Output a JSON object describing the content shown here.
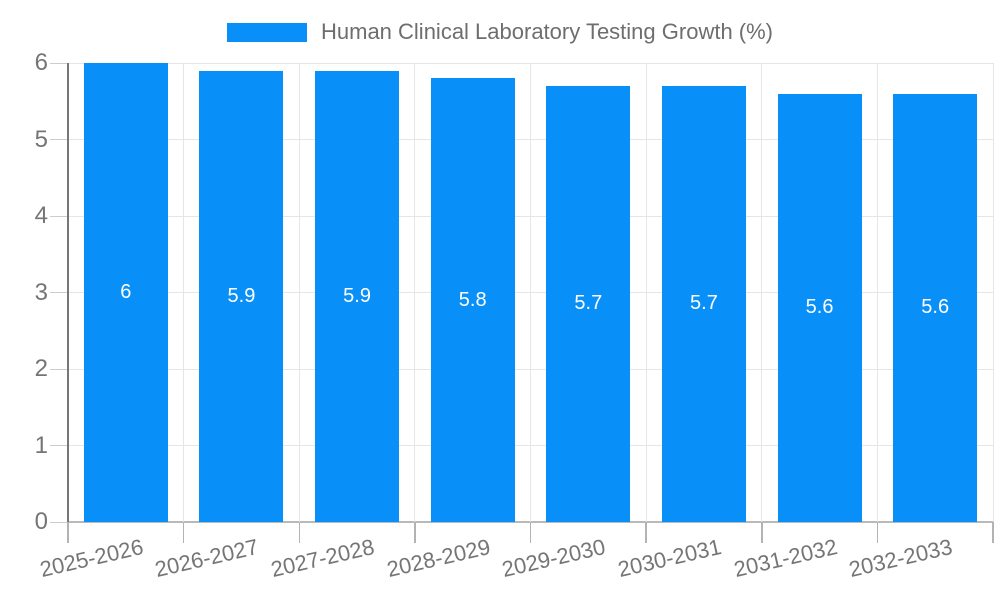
{
  "chart_data": {
    "type": "bar",
    "title": "Human Clinical Laboratory Testing Growth (%)",
    "categories": [
      "2025-2026",
      "2026-2027",
      "2027-2028",
      "2028-2029",
      "2029-2030",
      "2030-2031",
      "2031-2032",
      "2032-2033"
    ],
    "values": [
      6,
      5.9,
      5.9,
      5.8,
      5.7,
      5.7,
      5.6,
      5.6
    ],
    "xlabel": "",
    "ylabel": "",
    "ylim": [
      0,
      6
    ],
    "y_ticks": [
      0,
      1,
      2,
      3,
      4,
      5,
      6
    ],
    "grid": true,
    "legend_position": "top-center",
    "colors": {
      "bar": "#098ff8",
      "bar_value_label": "#ffffff",
      "axis_text": "#757575",
      "legend_text": "#6e6e6e",
      "gridline": "#e6e6e6",
      "axis_line": "#767676",
      "baseline": "#b9b9b9"
    }
  }
}
